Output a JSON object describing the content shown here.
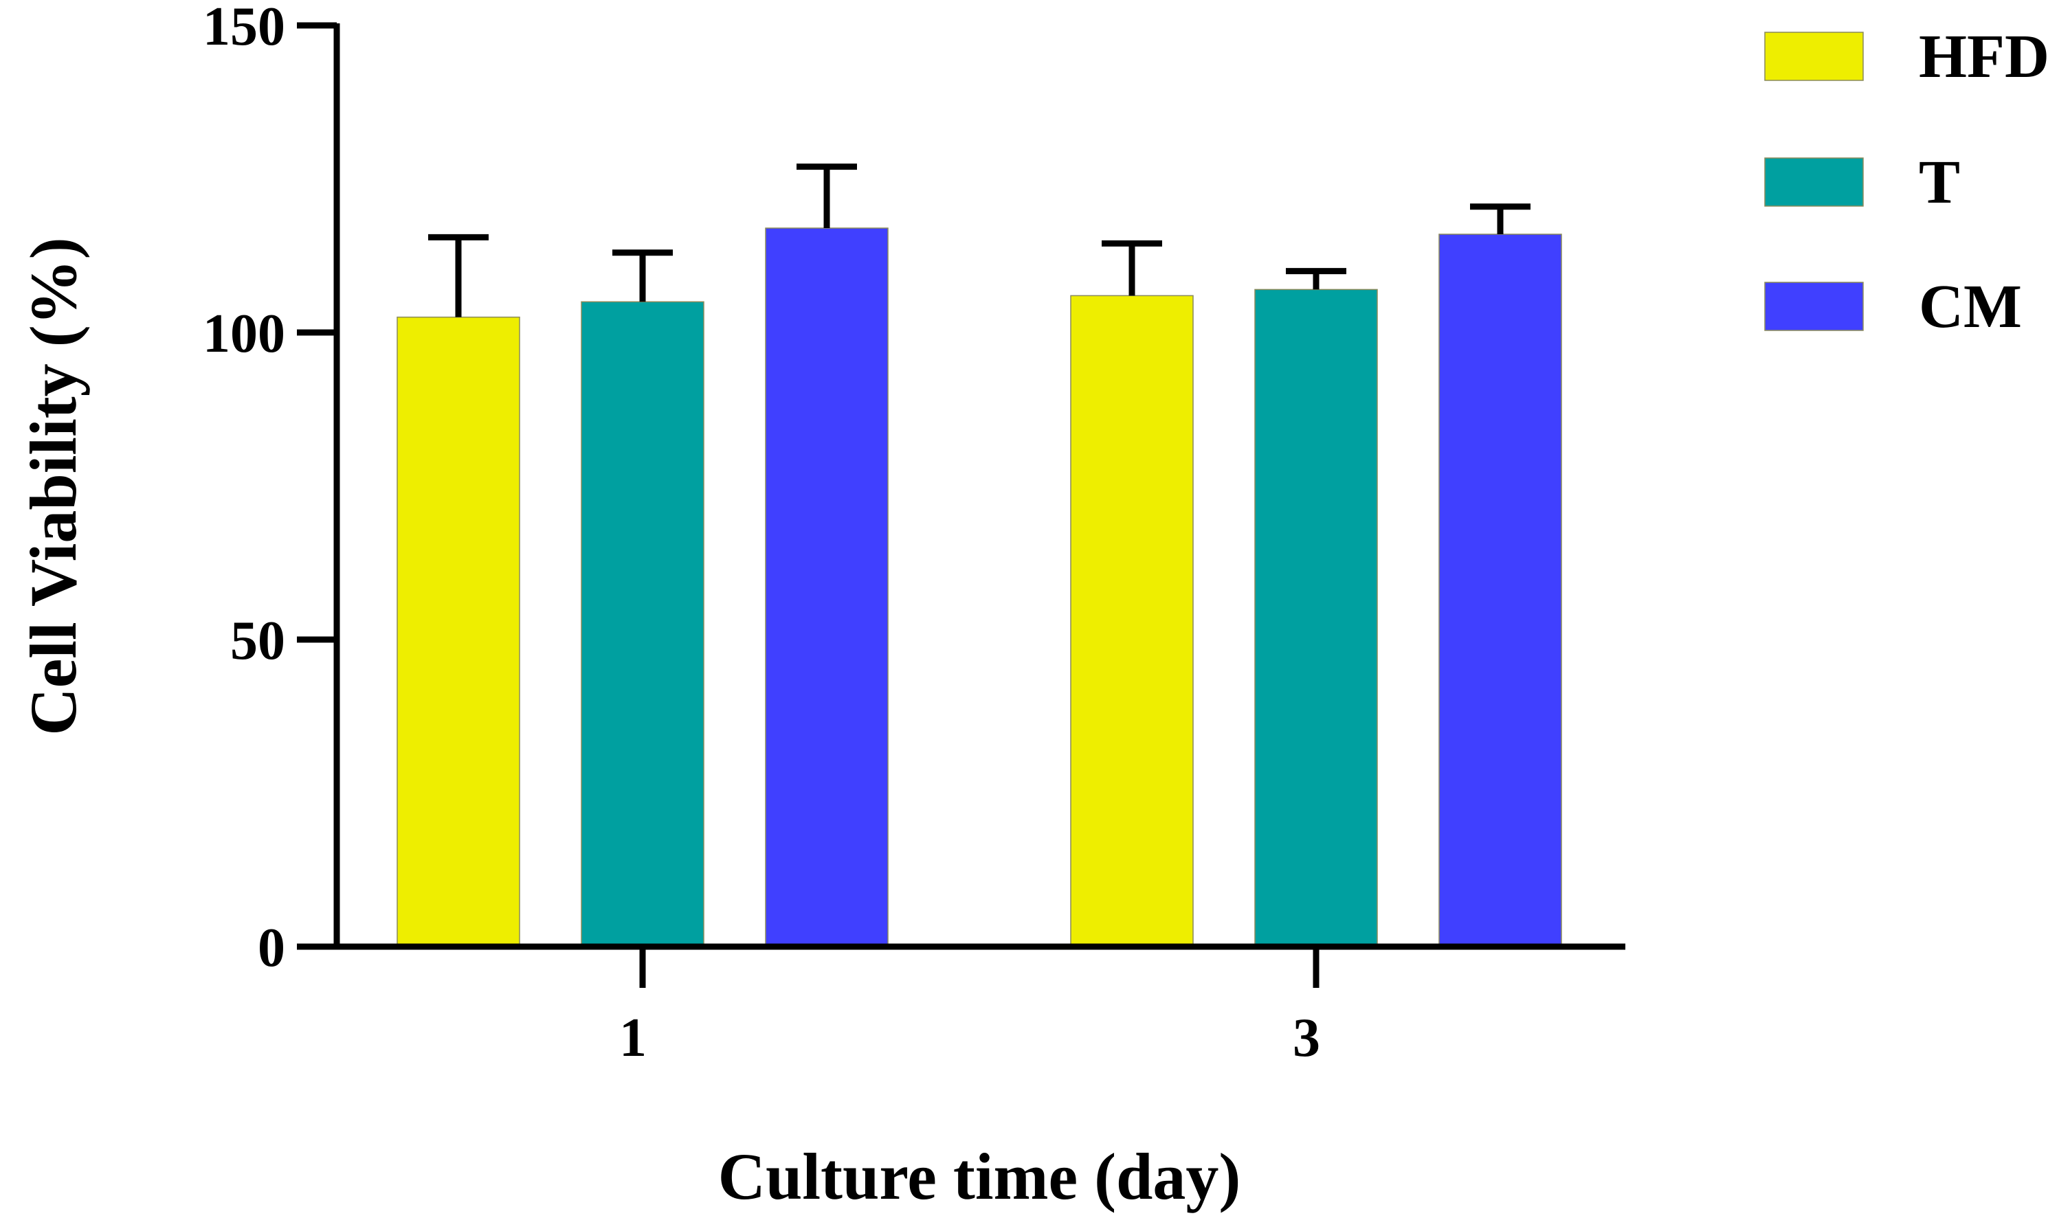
{
  "chart_data": {
    "type": "bar",
    "categories": [
      "1",
      "3"
    ],
    "series": [
      {
        "name": "HFD",
        "values": [
          102.5,
          106
        ],
        "errors": [
          13,
          8.5
        ],
        "color": "#EEEE00"
      },
      {
        "name": "T",
        "values": [
          105,
          107
        ],
        "errors": [
          8,
          3
        ],
        "color": "#00A0A0"
      },
      {
        "name": "CM",
        "values": [
          117,
          116
        ],
        "errors": [
          10,
          4.5
        ],
        "color": "#4040FF"
      }
    ],
    "title": "",
    "xlabel": "Culture time (day)",
    "ylabel": "Cell Viability (%)",
    "ylim": [
      0,
      150
    ],
    "yticks": [
      "0",
      "50",
      "100",
      "150"
    ],
    "grid": false,
    "legend": "top-right",
    "axis_color": "#000000"
  }
}
